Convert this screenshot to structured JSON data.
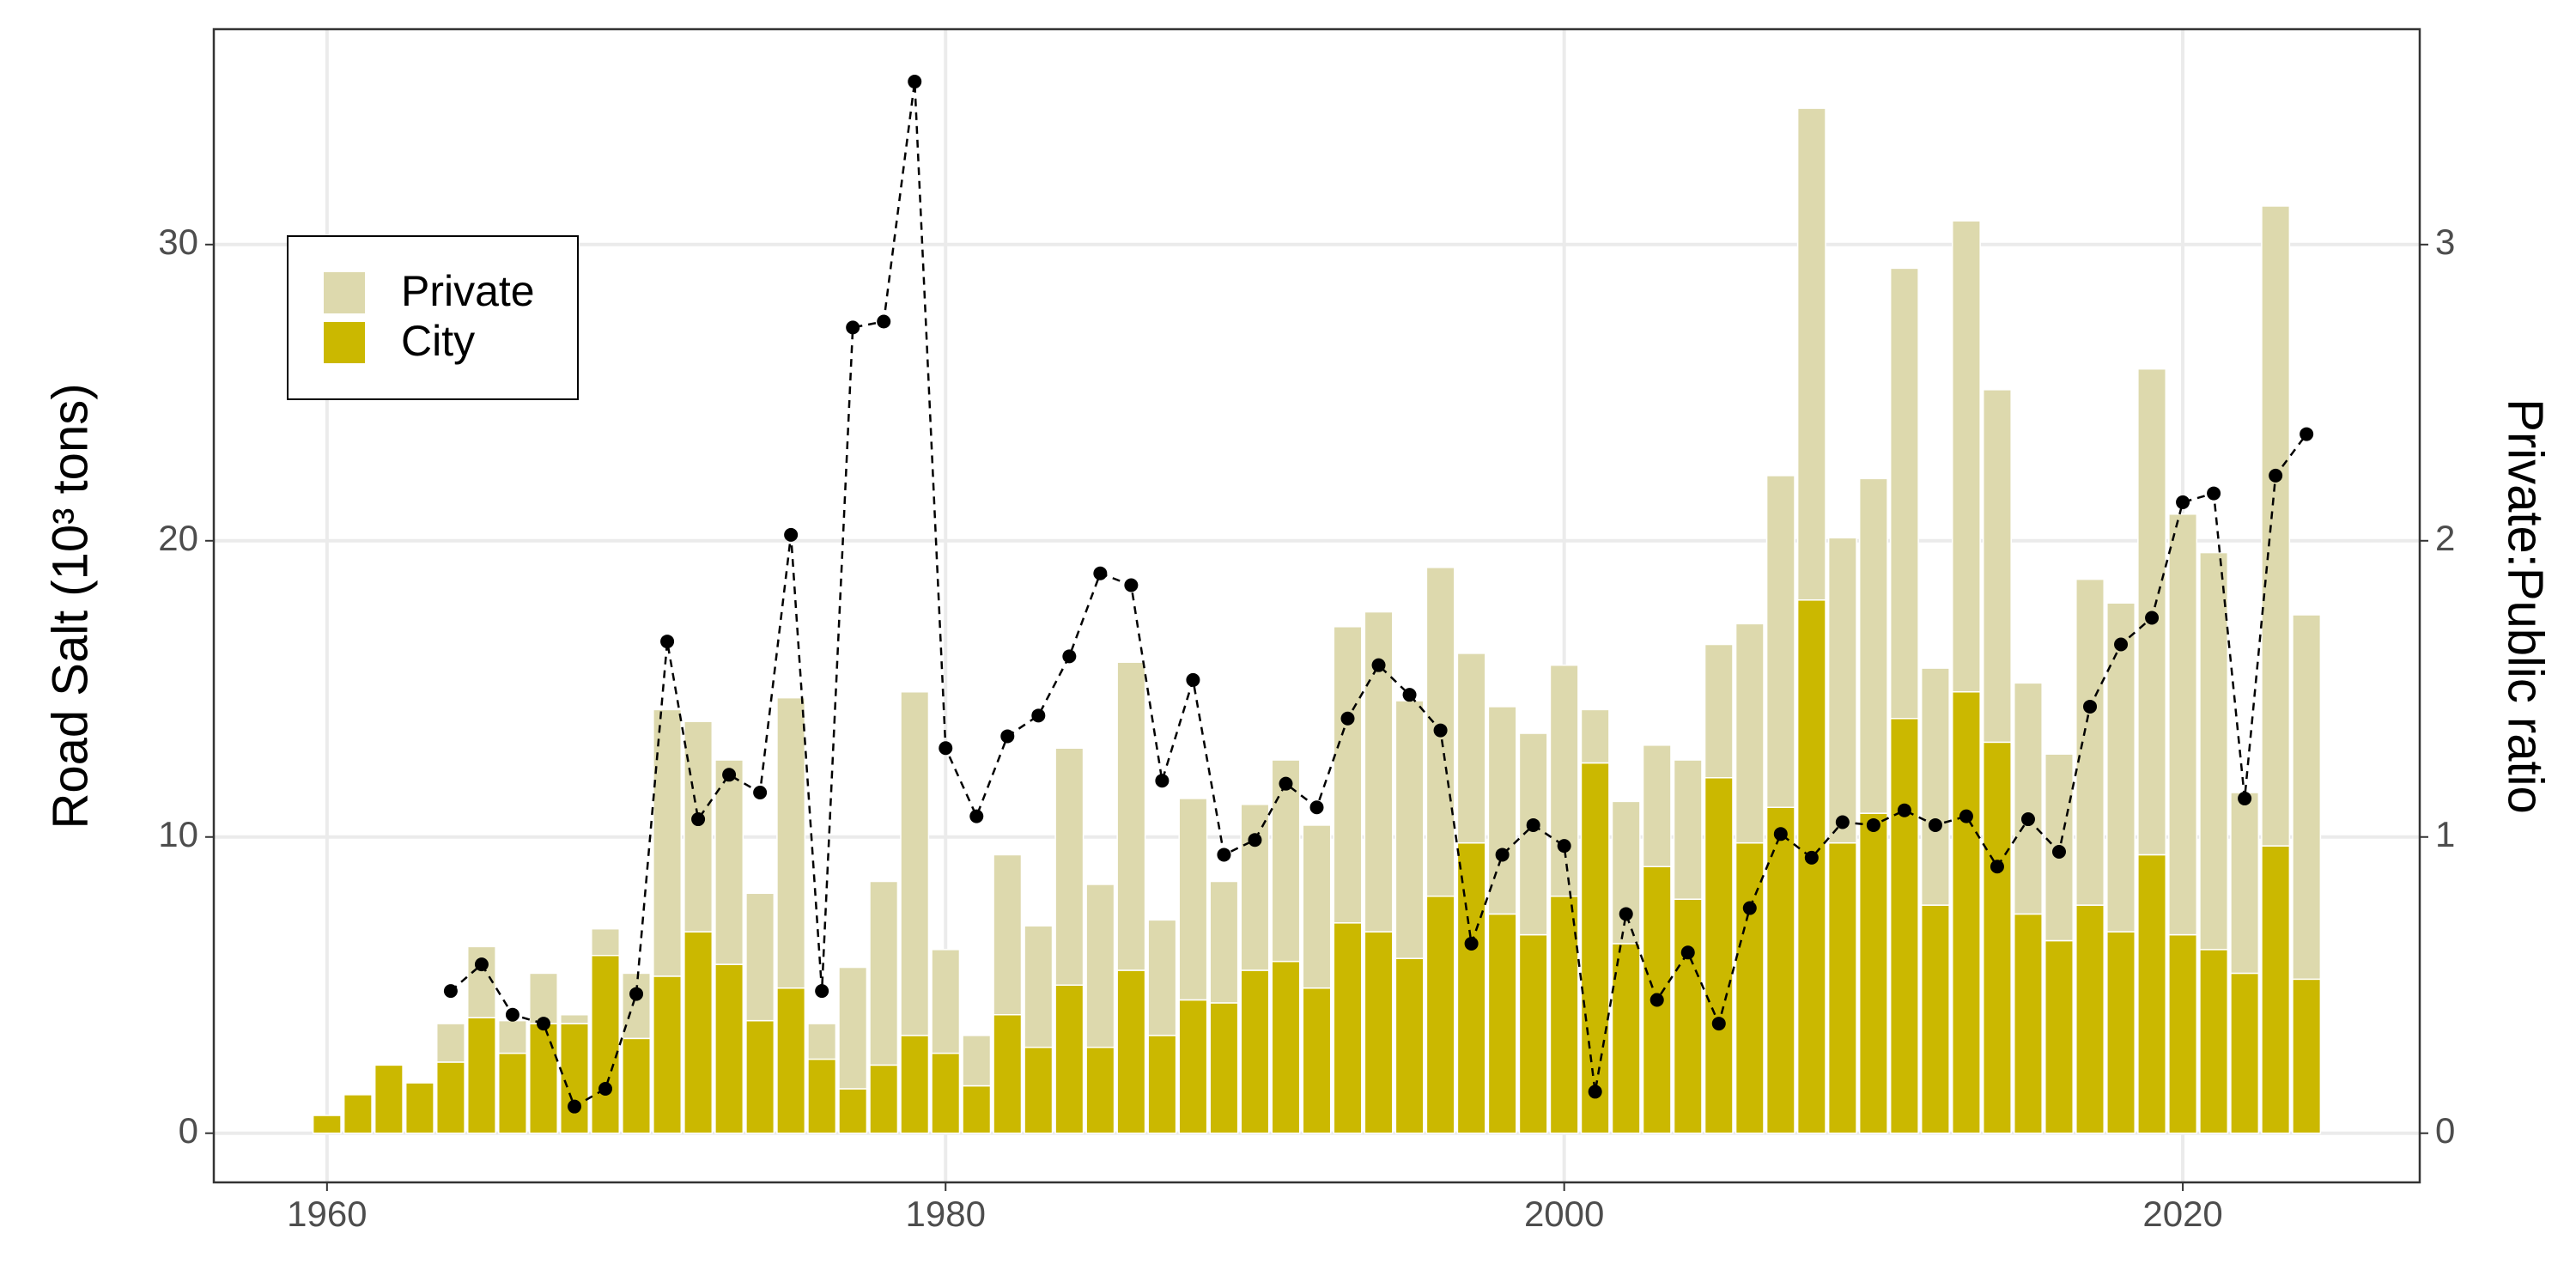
{
  "chart_data": {
    "type": "bar",
    "stacked": true,
    "y_label": "Road Salt (10³ tons)",
    "y2_label": "Private:Public ratio",
    "x": [
      1960,
      1961,
      1962,
      1963,
      1964,
      1965,
      1966,
      1967,
      1968,
      1969,
      1970,
      1971,
      1972,
      1973,
      1974,
      1975,
      1976,
      1977,
      1978,
      1979,
      1980,
      1981,
      1982,
      1983,
      1984,
      1985,
      1986,
      1987,
      1988,
      1989,
      1990,
      1991,
      1992,
      1993,
      1994,
      1995,
      1996,
      1997,
      1998,
      1999,
      2000,
      2001,
      2002,
      2003,
      2004,
      2005,
      2006,
      2007,
      2008,
      2009,
      2010,
      2011,
      2012,
      2013,
      2014,
      2015,
      2016,
      2017,
      2018,
      2019,
      2020,
      2021,
      2022,
      2023,
      2024
    ],
    "series": [
      {
        "name": "Private",
        "color": "#ddd9ad",
        "values": [
          null,
          null,
          null,
          null,
          1.3,
          2.4,
          1.1,
          1.7,
          0.3,
          0.9,
          2.2,
          9.0,
          7.1,
          6.9,
          4.3,
          9.8,
          1.2,
          4.1,
          6.2,
          11.6,
          3.5,
          1.7,
          5.4,
          4.1,
          8.0,
          5.5,
          10.4,
          3.9,
          6.8,
          4.1,
          5.6,
          6.8,
          5.5,
          10.0,
          10.8,
          8.7,
          11.1,
          6.4,
          7.0,
          6.8,
          7.8,
          1.8,
          4.8,
          4.1,
          4.7,
          4.5,
          7.4,
          11.2,
          16.6,
          10.3,
          11.3,
          15.2,
          8.0,
          15.9,
          11.9,
          7.8,
          6.3,
          11.0,
          11.1,
          16.4,
          14.2,
          13.4,
          6.1,
          21.6,
          12.3
        ]
      },
      {
        "name": "City",
        "color": "#cbb800",
        "values": [
          0.6,
          1.3,
          2.3,
          1.7,
          2.4,
          3.9,
          2.7,
          3.7,
          3.7,
          6.0,
          3.2,
          5.3,
          6.8,
          5.7,
          3.8,
          4.9,
          2.5,
          1.5,
          2.3,
          3.3,
          2.7,
          1.6,
          4.0,
          2.9,
          5.0,
          2.9,
          5.5,
          3.3,
          4.5,
          4.4,
          5.5,
          5.8,
          4.9,
          7.1,
          6.8,
          5.9,
          8.0,
          9.8,
          7.4,
          6.7,
          8.0,
          12.5,
          6.4,
          9.0,
          7.9,
          12.0,
          9.8,
          11.0,
          18.0,
          9.8,
          10.8,
          14.0,
          7.7,
          14.9,
          13.2,
          7.4,
          6.5,
          7.7,
          6.8,
          9.4,
          6.7,
          6.2,
          5.4,
          9.7,
          5.2
        ]
      },
      {
        "type": "line",
        "axis": "y2",
        "color": "#000000",
        "values": [
          null,
          null,
          null,
          null,
          0.48,
          0.57,
          0.4,
          0.37,
          0.09,
          0.15,
          0.47,
          1.66,
          1.06,
          1.21,
          1.15,
          2.02,
          0.48,
          2.72,
          2.74,
          3.55,
          1.3,
          1.07,
          1.34,
          1.41,
          1.61,
          1.89,
          1.85,
          1.19,
          1.53,
          0.94,
          0.99,
          1.18,
          1.1,
          1.4,
          1.58,
          1.48,
          1.36,
          0.64,
          0.94,
          1.04,
          0.97,
          0.14,
          0.74,
          0.45,
          0.61,
          0.37,
          0.76,
          1.01,
          0.93,
          1.05,
          1.04,
          1.09,
          1.04,
          1.07,
          0.9,
          1.06,
          0.95,
          1.44,
          1.65,
          1.74,
          2.13,
          2.16,
          1.13,
          2.22,
          2.36
        ]
      }
    ],
    "xlim": [
      1956.34,
      2027.66
    ],
    "xticks": [
      1960,
      1980,
      2000,
      2020
    ],
    "ylim": [
      -1.66,
      37.27
    ],
    "yticks": [
      0,
      10,
      20,
      30
    ],
    "y2lim": [
      -0.166,
      3.727
    ],
    "y2ticks": [
      0,
      1,
      2,
      3
    ],
    "grid": true,
    "legend_position": "upper left"
  }
}
